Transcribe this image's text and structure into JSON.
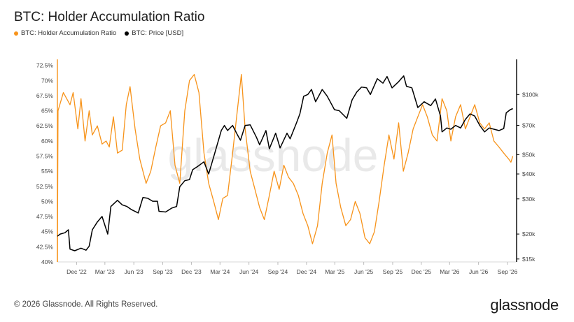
{
  "title": "BTC: Holder Accumulation Ratio",
  "legend": [
    {
      "label": "BTC: Holder Accumulation Ratio",
      "color": "#f7931a"
    },
    {
      "label": "BTC: Price [USD]",
      "color": "#000000"
    }
  ],
  "watermark": "glassnode",
  "footer": "© 2026 Glassnode. All Rights Reserved.",
  "brand": "glassnode",
  "chart_data": {
    "type": "line",
    "x_ticks": [
      "Dec '22",
      "Mar '23",
      "Jun '23",
      "Sep '23",
      "Dec '23",
      "Mar '24",
      "Jun '24",
      "Sep '24",
      "Dec '24",
      "Mar '25",
      "Jun '25",
      "Sep '25",
      "Dec '25",
      "Mar '26",
      "Jun '26",
      "Sep '26"
    ],
    "x_range": [
      "2022-10-01",
      "2026-09-30"
    ],
    "left_axis": {
      "ticks": [
        "40%",
        "42.5%",
        "45%",
        "47.5%",
        "50%",
        "52.5%",
        "55%",
        "57.5%",
        "60%",
        "62.5%",
        "65%",
        "67.5%",
        "70%",
        "72.5%"
      ],
      "ylim": [
        40,
        73.5
      ],
      "unit": "%"
    },
    "right_axis": {
      "ticks": [
        "$15k",
        "$20k",
        "$30k",
        "$40k",
        "$50k",
        "$70k",
        "$100k"
      ],
      "scale": "log",
      "ylim": [
        14500,
        150000
      ]
    },
    "grid": false,
    "series": [
      {
        "name": "BTC: Holder Accumulation Ratio",
        "axis": "left",
        "color": "#f7931a",
        "points": [
          [
            "2022-10-01",
            40
          ],
          [
            "2022-10-03",
            65
          ],
          [
            "2022-10-20",
            68
          ],
          [
            "2022-11-10",
            66
          ],
          [
            "2022-11-20",
            68
          ],
          [
            "2022-12-05",
            62
          ],
          [
            "2022-12-15",
            67
          ],
          [
            "2022-12-28",
            60
          ],
          [
            "2023-01-10",
            65
          ],
          [
            "2023-01-20",
            61
          ],
          [
            "2023-02-05",
            62.5
          ],
          [
            "2023-02-20",
            59.5
          ],
          [
            "2023-03-05",
            60
          ],
          [
            "2023-03-15",
            59
          ],
          [
            "2023-03-28",
            64
          ],
          [
            "2023-04-10",
            58
          ],
          [
            "2023-04-25",
            58.5
          ],
          [
            "2023-05-08",
            66
          ],
          [
            "2023-05-20",
            69
          ],
          [
            "2023-06-05",
            62
          ],
          [
            "2023-06-20",
            57
          ],
          [
            "2023-07-10",
            53
          ],
          [
            "2023-07-25",
            55
          ],
          [
            "2023-08-10",
            59
          ],
          [
            "2023-08-25",
            62.5
          ],
          [
            "2023-09-10",
            63
          ],
          [
            "2023-09-25",
            65
          ],
          [
            "2023-10-10",
            56
          ],
          [
            "2023-10-25",
            53
          ],
          [
            "2023-11-10",
            65
          ],
          [
            "2023-11-25",
            70
          ],
          [
            "2023-12-10",
            71
          ],
          [
            "2023-12-25",
            68
          ],
          [
            "2024-01-10",
            58
          ],
          [
            "2024-01-25",
            53
          ],
          [
            "2024-02-10",
            50
          ],
          [
            "2024-02-25",
            47
          ],
          [
            "2024-03-10",
            50.5
          ],
          [
            "2024-03-25",
            51
          ],
          [
            "2024-04-10",
            58
          ],
          [
            "2024-04-25",
            65
          ],
          [
            "2024-05-08",
            71
          ],
          [
            "2024-05-20",
            62
          ],
          [
            "2024-06-05",
            55
          ],
          [
            "2024-06-20",
            52
          ],
          [
            "2024-07-05",
            49
          ],
          [
            "2024-07-20",
            47
          ],
          [
            "2024-08-05",
            51
          ],
          [
            "2024-08-20",
            55
          ],
          [
            "2024-09-05",
            52
          ],
          [
            "2024-09-20",
            56
          ],
          [
            "2024-10-05",
            54
          ],
          [
            "2024-10-20",
            53
          ],
          [
            "2024-11-05",
            51
          ],
          [
            "2024-11-20",
            48
          ],
          [
            "2024-12-05",
            46
          ],
          [
            "2024-12-20",
            43
          ],
          [
            "2025-01-05",
            46
          ],
          [
            "2025-01-20",
            53
          ],
          [
            "2025-02-05",
            58
          ],
          [
            "2025-02-20",
            61
          ],
          [
            "2025-03-05",
            53
          ],
          [
            "2025-03-20",
            49
          ],
          [
            "2025-04-05",
            46
          ],
          [
            "2025-04-20",
            47
          ],
          [
            "2025-05-05",
            50
          ],
          [
            "2025-05-20",
            48
          ],
          [
            "2025-06-05",
            44
          ],
          [
            "2025-06-20",
            43
          ],
          [
            "2025-07-05",
            45
          ],
          [
            "2025-07-20",
            50
          ],
          [
            "2025-08-05",
            56
          ],
          [
            "2025-08-20",
            61
          ],
          [
            "2025-09-05",
            57
          ],
          [
            "2025-09-20",
            63
          ],
          [
            "2025-10-05",
            55
          ],
          [
            "2025-10-20",
            58
          ],
          [
            "2025-11-05",
            62
          ],
          [
            "2025-11-20",
            64
          ],
          [
            "2025-12-05",
            66
          ],
          [
            "2025-12-20",
            64
          ],
          [
            "2026-01-05",
            61
          ],
          [
            "2026-01-20",
            60
          ],
          [
            "2026-02-05",
            67
          ],
          [
            "2026-02-20",
            65
          ],
          [
            "2026-03-05",
            60
          ],
          [
            "2026-03-20",
            64
          ],
          [
            "2026-04-05",
            66
          ],
          [
            "2026-04-20",
            62
          ],
          [
            "2026-05-05",
            64
          ],
          [
            "2026-05-20",
            66
          ],
          [
            "2026-06-05",
            63
          ],
          [
            "2026-06-20",
            62
          ],
          [
            "2026-07-05",
            63
          ],
          [
            "2026-07-20",
            60
          ],
          [
            "2026-08-05",
            59
          ],
          [
            "2026-08-20",
            58
          ],
          [
            "2026-09-05",
            57
          ],
          [
            "2026-09-12",
            56.5
          ],
          [
            "2026-09-18",
            57.5
          ]
        ]
      },
      {
        "name": "BTC: Price [USD]",
        "axis": "right",
        "color": "#000000",
        "points": [
          [
            "2022-10-01",
            19500
          ],
          [
            "2022-10-10",
            20000
          ],
          [
            "2022-10-25",
            20300
          ],
          [
            "2022-11-05",
            21000
          ],
          [
            "2022-11-10",
            16800
          ],
          [
            "2022-11-25",
            16500
          ],
          [
            "2022-12-15",
            17000
          ],
          [
            "2022-12-31",
            16600
          ],
          [
            "2023-01-10",
            17400
          ],
          [
            "2023-01-20",
            21000
          ],
          [
            "2023-02-05",
            23000
          ],
          [
            "2023-02-20",
            24500
          ],
          [
            "2023-03-10",
            20000
          ],
          [
            "2023-03-20",
            27500
          ],
          [
            "2023-04-10",
            29500
          ],
          [
            "2023-04-25",
            28000
          ],
          [
            "2023-05-10",
            27500
          ],
          [
            "2023-05-25",
            26500
          ],
          [
            "2023-06-15",
            25500
          ],
          [
            "2023-06-30",
            30500
          ],
          [
            "2023-07-15",
            30200
          ],
          [
            "2023-07-31",
            29200
          ],
          [
            "2023-08-15",
            29200
          ],
          [
            "2023-08-20",
            26000
          ],
          [
            "2023-09-10",
            25800
          ],
          [
            "2023-09-30",
            27000
          ],
          [
            "2023-10-15",
            27500
          ],
          [
            "2023-10-25",
            34500
          ],
          [
            "2023-11-10",
            37000
          ],
          [
            "2023-11-25",
            37500
          ],
          [
            "2023-12-05",
            42000
          ],
          [
            "2023-12-20",
            43500
          ],
          [
            "2024-01-10",
            46000
          ],
          [
            "2024-01-25",
            40000
          ],
          [
            "2024-02-15",
            52000
          ],
          [
            "2024-03-05",
            66000
          ],
          [
            "2024-03-15",
            70000
          ],
          [
            "2024-03-25",
            66000
          ],
          [
            "2024-04-10",
            70000
          ],
          [
            "2024-04-25",
            63000
          ],
          [
            "2024-05-05",
            59000
          ],
          [
            "2024-05-20",
            70000
          ],
          [
            "2024-06-05",
            70500
          ],
          [
            "2024-06-25",
            61000
          ],
          [
            "2024-07-05",
            56000
          ],
          [
            "2024-07-25",
            66000
          ],
          [
            "2024-08-05",
            53500
          ],
          [
            "2024-08-25",
            64000
          ],
          [
            "2024-09-08",
            54000
          ],
          [
            "2024-09-30",
            64000
          ],
          [
            "2024-10-10",
            60000
          ],
          [
            "2024-10-30",
            72000
          ],
          [
            "2024-11-10",
            80000
          ],
          [
            "2024-11-22",
            98000
          ],
          [
            "2024-12-05",
            100000
          ],
          [
            "2024-12-17",
            106000
          ],
          [
            "2024-12-30",
            92000
          ],
          [
            "2025-01-20",
            106000
          ],
          [
            "2025-02-05",
            98000
          ],
          [
            "2025-02-28",
            84000
          ],
          [
            "2025-03-15",
            83000
          ],
          [
            "2025-04-08",
            76000
          ],
          [
            "2025-04-25",
            94000
          ],
          [
            "2025-05-10",
            103000
          ],
          [
            "2025-05-25",
            109000
          ],
          [
            "2025-06-10",
            108000
          ],
          [
            "2025-06-22",
            100000
          ],
          [
            "2025-07-14",
            120000
          ],
          [
            "2025-08-01",
            114000
          ],
          [
            "2025-08-14",
            123000
          ],
          [
            "2025-08-30",
            108000
          ],
          [
            "2025-09-20",
            116000
          ],
          [
            "2025-10-06",
            124000
          ],
          [
            "2025-10-15",
            110000
          ],
          [
            "2025-11-01",
            108000
          ],
          [
            "2025-11-20",
            86000
          ],
          [
            "2025-12-10",
            92000
          ],
          [
            "2025-12-31",
            88000
          ],
          [
            "2026-01-15",
            95000
          ],
          [
            "2026-01-31",
            78000
          ],
          [
            "2026-02-05",
            65000
          ],
          [
            "2026-02-20",
            68000
          ],
          [
            "2026-03-05",
            67000
          ],
          [
            "2026-03-20",
            70000
          ],
          [
            "2026-04-05",
            68000
          ],
          [
            "2026-04-20",
            75000
          ],
          [
            "2026-05-05",
            80000
          ],
          [
            "2026-05-20",
            78000
          ],
          [
            "2026-06-05",
            70000
          ],
          [
            "2026-06-20",
            65000
          ],
          [
            "2026-07-05",
            68000
          ],
          [
            "2026-07-20",
            67000
          ],
          [
            "2026-08-05",
            66000
          ],
          [
            "2026-08-20",
            67500
          ],
          [
            "2026-08-28",
            81000
          ],
          [
            "2026-09-10",
            84000
          ],
          [
            "2026-09-18",
            85000
          ]
        ]
      }
    ]
  }
}
